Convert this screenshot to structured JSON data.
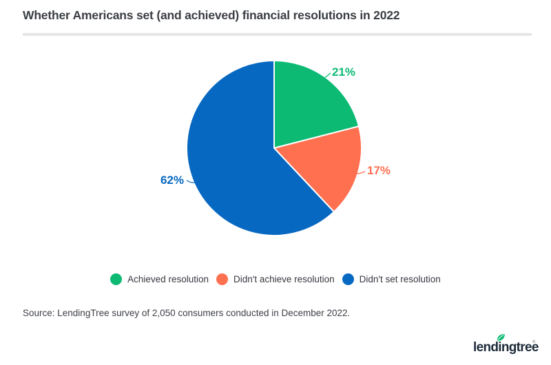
{
  "title": "Whether Americans set (and achieved) financial resolutions in 2022",
  "chart_data": {
    "type": "pie",
    "title": "Whether Americans set (and achieved) financial resolutions in 2022",
    "categories": [
      "Achieved resolution",
      "Didn't achieve resolution",
      "Didn't set resolution"
    ],
    "values": [
      21,
      17,
      62
    ],
    "unit": "%",
    "data_labels": [
      "21%",
      "17%",
      "62%"
    ],
    "colors": [
      "#0cba74",
      "#ff7050",
      "#0768c1"
    ],
    "start_angle": "12 o'clock",
    "direction": "clockwise",
    "legend_position": "bottom",
    "slice_border_color": "#ffffff"
  },
  "legend": {
    "items": [
      {
        "label": "Achieved resolution",
        "color": "#0cba74"
      },
      {
        "label": "Didn't achieve resolution",
        "color": "#ff7050"
      },
      {
        "label": "Didn't set resolution",
        "color": "#0768c1"
      }
    ]
  },
  "source": "Source: LendingTree survey of 2,050 consumers conducted in December 2022.",
  "logo": {
    "text": "lendingtree",
    "trademark": "®",
    "leaf_color": "#0cba74",
    "text_color": "#1d2b3a"
  }
}
